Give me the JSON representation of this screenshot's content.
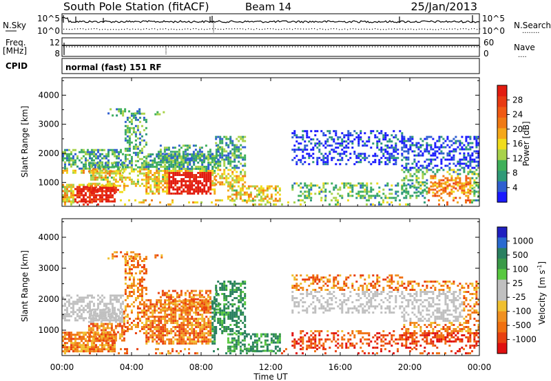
{
  "header": {
    "station": "South Pole Station (fitACF)",
    "beam": "Beam 14",
    "date": "25/Jan/2013"
  },
  "noise_panel": {
    "left_label": "N.Sky",
    "right_label": "N.Search",
    "right_label_line": "........",
    "tick_top_left": "10^5",
    "tick_bottom_left": "10^0",
    "tick_top_right": "10^5",
    "tick_bottom_right": "10^0"
  },
  "freq_panel": {
    "left_label_line1": "Freq.",
    "left_label_line2": "[MHz]",
    "right_label": "Nave",
    "right_label_line": "....",
    "tick_top_left": "12",
    "tick_bottom_left": "8",
    "tick_top_right": "60",
    "tick_bottom_right": "0"
  },
  "cpid_panel": {
    "label": "CPID",
    "text": "normal (fast) 151 RF"
  },
  "chart_data": [
    {
      "type": "heatmap",
      "name": "power",
      "ylabel": "Slant Range [km]",
      "yticks": [
        "1000",
        "2000",
        "3000",
        "4000"
      ],
      "ytick_values": [
        1000,
        2000,
        3000,
        4000
      ],
      "ylim": [
        180,
        4600
      ],
      "colorbar_label": "Power [dB]",
      "colorbar_ticks": [
        "4",
        "8",
        "12",
        "16",
        "20",
        "24",
        "28"
      ],
      "colorbar_colors": [
        "#1a1aff",
        "#2f5fd0",
        "#2f9a78",
        "#3fb05a",
        "#a8d24a",
        "#f0dc1c",
        "#f5a81a",
        "#f07a14",
        "#f05a14",
        "#e83a12",
        "#e21c10"
      ]
    },
    {
      "type": "heatmap",
      "name": "velocity",
      "ylabel": "Slant Range [km]",
      "yticks": [
        "1000",
        "2000",
        "3000",
        "4000"
      ],
      "ytick_values": [
        1000,
        2000,
        3000,
        4000
      ],
      "ylim": [
        180,
        4600
      ],
      "colorbar_label": "Velocity",
      "colorbar_unit": "[m s",
      "colorbar_unit_sup": "-1",
      "colorbar_unit_end": "]",
      "colorbar_ticks": [
        "1000",
        "500",
        "100",
        "25",
        "-25",
        "-100",
        "-500",
        "-1000"
      ],
      "colorbar_colors": [
        "#2020c0",
        "#2a6ad0",
        "#2a8060",
        "#3a9a48",
        "#58c840",
        "#c0c0c0",
        "#c0c0c0",
        "#f0c030",
        "#f09020",
        "#f07010",
        "#e84010",
        "#e01010"
      ]
    }
  ],
  "x_axis": {
    "ticks": [
      "00:00",
      "04:00",
      "08:00",
      "12:00",
      "16:00",
      "20:00",
      "00:00"
    ],
    "tick_hours": [
      0,
      4,
      8,
      12,
      16,
      20,
      24
    ],
    "label": "Time UT"
  }
}
